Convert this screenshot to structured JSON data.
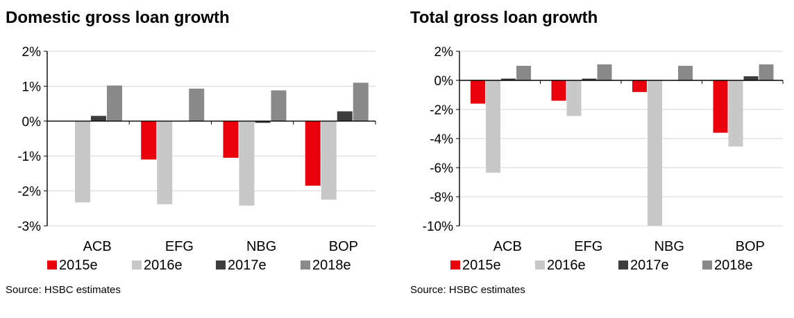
{
  "chart_data": [
    {
      "type": "bar",
      "title": "Domestic gross loan growth",
      "categories": [
        "ACB",
        "EFG",
        "NBG",
        "BOP"
      ],
      "series": [
        {
          "name": "2015e",
          "color": "#e8000d",
          "values": [
            0.0,
            -1.1,
            -1.05,
            -1.85
          ]
        },
        {
          "name": "2016e",
          "color": "#c8c8c8",
          "values": [
            -2.33,
            -2.38,
            -2.42,
            -2.25
          ]
        },
        {
          "name": "2017e",
          "color": "#3c3c3c",
          "values": [
            0.15,
            0.0,
            -0.05,
            0.28
          ]
        },
        {
          "name": "2018e",
          "color": "#898989",
          "values": [
            1.02,
            0.93,
            0.88,
            1.1
          ]
        }
      ],
      "yticks": [
        2,
        1,
        0,
        -1,
        -2,
        -3
      ],
      "ytick_labels": [
        "2%",
        "1%",
        "0%",
        "-1%",
        "-2%",
        "-3%"
      ],
      "ylim": [
        -3,
        2
      ],
      "xlabel": "",
      "ylabel": "",
      "legend_position": "bottom",
      "source": "Source: HSBC estimates"
    },
    {
      "type": "bar",
      "title": "Total gross loan growth",
      "categories": [
        "ACB",
        "EFG",
        "NBG",
        "BOP"
      ],
      "series": [
        {
          "name": "2015e",
          "color": "#e8000d",
          "values": [
            -1.6,
            -1.4,
            -0.8,
            -3.6
          ]
        },
        {
          "name": "2016e",
          "color": "#c8c8c8",
          "values": [
            -6.35,
            -2.45,
            -10.0,
            -4.55
          ]
        },
        {
          "name": "2017e",
          "color": "#3c3c3c",
          "values": [
            0.12,
            0.12,
            0.0,
            0.28
          ]
        },
        {
          "name": "2018e",
          "color": "#898989",
          "values": [
            1.0,
            1.1,
            1.0,
            1.1
          ]
        }
      ],
      "yticks": [
        2,
        0,
        -2,
        -4,
        -6,
        -8,
        -10
      ],
      "ytick_labels": [
        "2%",
        "0%",
        "-2%",
        "-4%",
        "-6%",
        "-8%",
        "-10%"
      ],
      "ylim": [
        -10,
        2
      ],
      "xlabel": "",
      "ylabel": "",
      "legend_position": "bottom",
      "source": "Source: HSBC estimates"
    }
  ]
}
